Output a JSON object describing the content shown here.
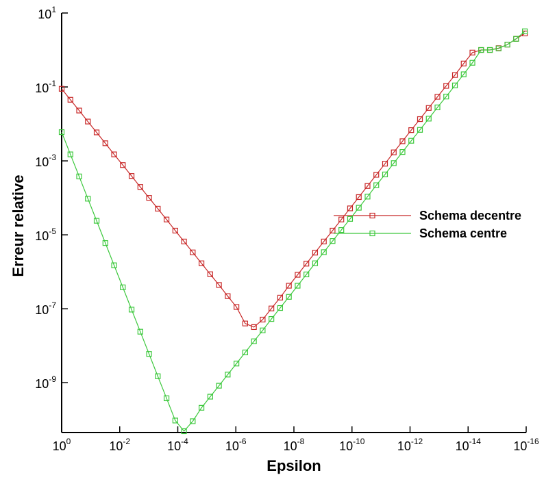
{
  "chart_data": {
    "type": "line",
    "xlabel": "Epsilon",
    "ylabel": "Erreur relative",
    "x_scale": "log",
    "y_scale": "log",
    "grid": false,
    "legend_position": "center right",
    "xlim": [
      1,
      1e-16
    ],
    "ylim": [
      10,
      4.5e-11
    ],
    "xticks": [
      {
        "value": 1,
        "label": "10",
        "sup": "0"
      },
      {
        "value": 0.01,
        "label": "10",
        "sup": "-2"
      },
      {
        "value": 0.0001,
        "label": "10",
        "sup": "-4"
      },
      {
        "value": 1e-06,
        "label": "10",
        "sup": "-6"
      },
      {
        "value": 1e-08,
        "label": "10",
        "sup": "-8"
      },
      {
        "value": 1e-10,
        "label": "10",
        "sup": "-10"
      },
      {
        "value": 1e-12,
        "label": "10",
        "sup": "-12"
      },
      {
        "value": 1e-14,
        "label": "10",
        "sup": "-14"
      },
      {
        "value": 1e-16,
        "label": "10",
        "sup": "-16"
      }
    ],
    "yticks": [
      {
        "value": 10,
        "label": "10",
        "sup": "1"
      },
      {
        "value": 0.1,
        "label": "10",
        "sup": "-1"
      },
      {
        "value": 0.001,
        "label": "10",
        "sup": "-3"
      },
      {
        "value": 1e-05,
        "label": "10",
        "sup": "-5"
      },
      {
        "value": 1e-07,
        "label": "10",
        "sup": "-7"
      },
      {
        "value": 1e-09,
        "label": "10",
        "sup": "-9"
      }
    ],
    "x": [
      1,
      0.5,
      0.25,
      0.125,
      0.0625,
      0.03125,
      0.015625,
      0.0078125,
      0.00390625,
      0.001953125,
      0.0009766,
      0.0004883,
      0.0002441,
      0.0001221,
      6.104e-05,
      3.052e-05,
      1.526e-05,
      7.629e-06,
      3.815e-06,
      1.907e-06,
      9.537e-07,
      4.768e-07,
      2.384e-07,
      1.192e-07,
      5.96e-08,
      2.98e-08,
      1.49e-08,
      7.451e-09,
      3.725e-09,
      1.863e-09,
      9.313e-10,
      4.657e-10,
      2.328e-10,
      1.164e-10,
      5.821e-11,
      2.91e-11,
      1.455e-11,
      7.276e-12,
      3.638e-12,
      1.819e-12,
      9.095e-13,
      4.547e-13,
      2.274e-13,
      1.137e-13,
      5.684e-14,
      2.842e-14,
      1.421e-14,
      7.105e-15,
      3.553e-15,
      1.776e-15,
      8.882e-16,
      4.441e-16,
      2.22e-16,
      1.11e-16
    ],
    "series": [
      {
        "name": "Schema decentre",
        "color": "#c82828",
        "values": [
          0.089,
          0.045,
          0.023,
          0.0116,
          0.0059,
          0.003,
          0.0015,
          0.00077,
          0.00039,
          0.000197,
          0.0001,
          5.1e-05,
          2.6e-05,
          1.3e-05,
          6.6e-06,
          3.35e-06,
          1.7e-06,
          8.6e-07,
          4.4e-07,
          2.2e-07,
          1.12e-07,
          4e-08,
          3.2e-08,
          5.1e-08,
          1.02e-07,
          2e-07,
          4.2e-07,
          8.3e-07,
          1.66e-06,
          3.3e-06,
          6.6e-06,
          1.3e-05,
          2.6e-05,
          5.2e-05,
          0.000105,
          0.00021,
          0.00042,
          0.00084,
          0.0017,
          0.0034,
          0.0068,
          0.0135,
          0.027,
          0.054,
          0.107,
          0.21,
          0.43,
          0.85,
          1.0,
          1.0,
          1.12,
          1.4,
          2.0,
          2.8
        ]
      },
      {
        "name": "Schema centre",
        "color": "#3cc83c",
        "values": [
          0.006,
          0.0015,
          0.00038,
          9.5e-05,
          2.4e-05,
          6e-06,
          1.5e-06,
          3.8e-07,
          9.5e-08,
          2.4e-08,
          6e-09,
          1.5e-09,
          3.8e-10,
          9.5e-11,
          4.9e-11,
          9.1e-11,
          2.1e-10,
          4.2e-10,
          8.3e-10,
          1.66e-09,
          3.3e-09,
          6.6e-09,
          1.32e-08,
          2.6e-08,
          5.3e-08,
          1.05e-07,
          2.1e-07,
          4.2e-07,
          8.5e-07,
          1.7e-06,
          3.4e-06,
          6.8e-06,
          1.35e-05,
          2.7e-05,
          5.4e-05,
          0.000108,
          0.00022,
          0.00043,
          0.00087,
          0.00174,
          0.0035,
          0.0069,
          0.0139,
          0.028,
          0.055,
          0.11,
          0.22,
          0.45,
          1.0,
          1.0,
          1.1,
          1.4,
          2.0,
          3.2
        ]
      }
    ]
  }
}
